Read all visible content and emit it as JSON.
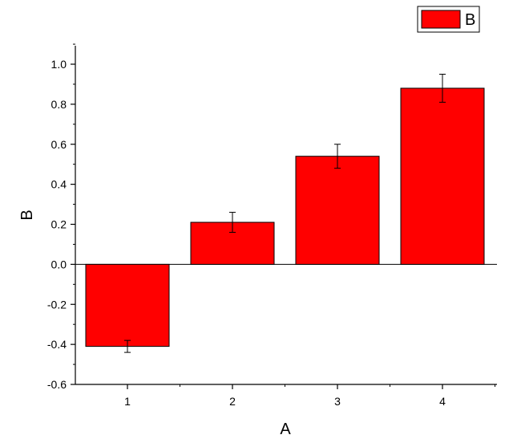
{
  "chart_data": {
    "type": "bar",
    "categories": [
      "1",
      "2",
      "3",
      "4"
    ],
    "series": [
      {
        "name": "B",
        "values": [
          -0.41,
          0.21,
          0.54,
          0.88
        ],
        "errors": [
          0.03,
          0.05,
          0.06,
          0.07
        ],
        "color": "#ff0000"
      }
    ],
    "xlabel": "A",
    "ylabel": "B",
    "ylim": [
      -0.6,
      1.1
    ],
    "yticks": [
      "-0.6",
      "-0.4",
      "-0.2",
      "0.0",
      "0.2",
      "0.4",
      "0.6",
      "0.8",
      "1.0"
    ],
    "grid": false,
    "legend": "top-right"
  }
}
